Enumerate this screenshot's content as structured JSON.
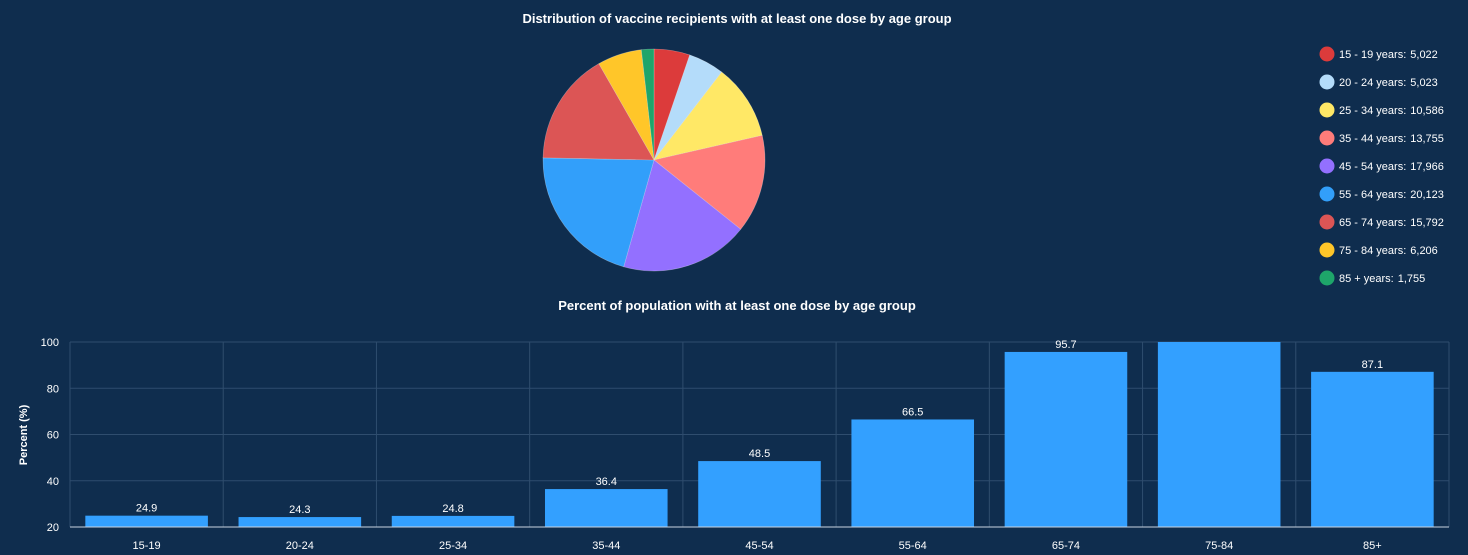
{
  "chart_data": [
    {
      "type": "pie",
      "title": "Distribution of vaccine recipients with at least one dose by age group",
      "legend_position": "right",
      "slices": [
        {
          "label": "15 - 19 years:",
          "value": 5022,
          "value_text": "5,022",
          "color": "#dc3b3b"
        },
        {
          "label": "20 - 24 years:",
          "value": 5023,
          "value_text": "5,023",
          "color": "#b4dcfa"
        },
        {
          "label": "25 - 34 years:",
          "value": 10586,
          "value_text": "10,586",
          "color": "#ffe866"
        },
        {
          "label": "35 - 44 years:",
          "value": 13755,
          "value_text": "13,755",
          "color": "#ff7c7a"
        },
        {
          "label": "45 - 54 years:",
          "value": 17966,
          "value_text": "17,966",
          "color": "#9370ff"
        },
        {
          "label": "55 - 64 years:",
          "value": 20123,
          "value_text": "20,123",
          "color": "#329ffa"
        },
        {
          "label": "65 - 74 years:",
          "value": 15792,
          "value_text": "15,792",
          "color": "#dc5555"
        },
        {
          "label": "75 - 84 years:",
          "value": 6206,
          "value_text": "6,206",
          "color": "#ffc629"
        },
        {
          "label": "85 + years:",
          "value": 1755,
          "value_text": "1,755",
          "color": "#1ea56a"
        }
      ]
    },
    {
      "type": "bar",
      "title": "Percent of population with at least one dose by age group",
      "ylabel": "Percent (%)",
      "ylim": [
        20,
        100
      ],
      "yticks": [
        20,
        40,
        60,
        80,
        100
      ],
      "grid": true,
      "bar_color": "#33a0ff",
      "categories": [
        "15-19",
        "20-24",
        "25-34",
        "35-44",
        "45-54",
        "55-64",
        "65-74",
        "75-84",
        "85+"
      ],
      "values": [
        24.9,
        24.3,
        24.8,
        36.4,
        48.5,
        66.5,
        95.7,
        100,
        87.1
      ],
      "labels": [
        "24.9",
        "24.3",
        "24.8",
        "36.4",
        "48.5",
        "66.5",
        "95.7",
        "",
        "87.1"
      ]
    }
  ]
}
